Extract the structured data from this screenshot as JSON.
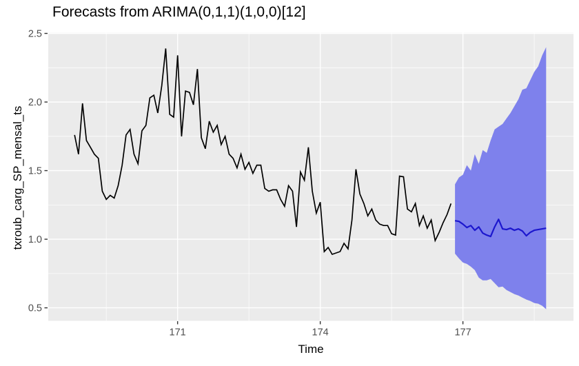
{
  "title": "Forecasts from ARIMA(0,1,1)(1,0,0)[12]",
  "x_axis": {
    "label": "Time",
    "tick_labels": [
      "171",
      "174",
      "177"
    ],
    "tick_values": [
      171,
      174,
      177
    ],
    "minor_tick_values": [
      169.5,
      172.5,
      175.5,
      178.5
    ],
    "range": [
      168.28,
      179.325
    ]
  },
  "y_axis": {
    "label": "txroub_carg_SP_mensal_ts",
    "tick_labels": [
      "0.5",
      "1.0",
      "1.5",
      "2.0",
      "2.5"
    ],
    "tick_values": [
      0.5,
      1.0,
      1.5,
      2.0,
      2.5
    ],
    "minor_tick_values": [
      0.75,
      1.25,
      1.75,
      2.25
    ],
    "range": [
      0.405,
      2.505
    ]
  },
  "colors": {
    "background": "#FFFFFF",
    "panel": "#EBEBEB",
    "grid": "#FFFFFF",
    "observed_line": "#000000",
    "forecast_line": "#1C17CE",
    "interval_fill": "#7E81EC",
    "tick_text": "#4D4D4D",
    "axis_text": "#000000",
    "tick_mark": "#333333"
  },
  "chart_data": {
    "type": "line",
    "title": "Forecasts from ARIMA(0,1,1)(1,0,0)[12]",
    "xlabel": "Time",
    "ylabel": "txroub_carg_SP_mensal_ts",
    "xlim": [
      168.28,
      179.325
    ],
    "ylim": [
      0.405,
      2.505
    ],
    "grid": "white major+minor gridlines on gray panel",
    "legend_position": "none",
    "frequency": 12,
    "series": [
      {
        "name": "observed",
        "type": "line",
        "color": "#000000",
        "x_start": 168.8333,
        "x_step": 0.083333,
        "values": [
          1.76,
          1.62,
          1.99,
          1.72,
          1.67,
          1.62,
          1.59,
          1.35,
          1.29,
          1.32,
          1.3,
          1.39,
          1.54,
          1.76,
          1.8,
          1.62,
          1.55,
          1.79,
          1.83,
          2.03,
          2.05,
          1.92,
          2.12,
          2.39,
          1.91,
          1.89,
          2.34,
          1.75,
          2.08,
          2.07,
          1.98,
          2.24,
          1.74,
          1.66,
          1.86,
          1.78,
          1.83,
          1.69,
          1.75,
          1.62,
          1.59,
          1.52,
          1.62,
          1.51,
          1.56,
          1.48,
          1.54,
          1.54,
          1.37,
          1.35,
          1.36,
          1.36,
          1.29,
          1.24,
          1.39,
          1.35,
          1.09,
          1.49,
          1.43,
          1.67,
          1.35,
          1.19,
          1.27,
          0.91,
          0.94,
          0.89,
          0.9,
          0.91,
          0.97,
          0.93,
          1.14,
          1.51,
          1.33,
          1.26,
          1.17,
          1.22,
          1.14,
          1.11,
          1.1,
          1.1,
          1.04,
          1.03,
          1.46,
          1.455,
          1.22,
          1.2,
          1.26,
          1.1,
          1.17,
          1.08,
          1.14,
          0.99,
          1.05,
          1.12,
          1.18,
          1.26
        ]
      },
      {
        "name": "forecast_mean",
        "type": "line",
        "color": "#1C17CE",
        "x_start": 176.8333,
        "x_step": 0.083333,
        "values": [
          1.135,
          1.13,
          1.11,
          1.085,
          1.1,
          1.065,
          1.09,
          1.045,
          1.03,
          1.02,
          1.09,
          1.145,
          1.075,
          1.07,
          1.08,
          1.065,
          1.075,
          1.06,
          1.025,
          1.05,
          1.065,
          1.07,
          1.075,
          1.08
        ]
      },
      {
        "name": "forecast_interval",
        "type": "area_band",
        "color": "#7E81EC",
        "x_start": 176.8333,
        "x_step": 0.083333,
        "upper": [
          1.4,
          1.45,
          1.47,
          1.54,
          1.5,
          1.62,
          1.55,
          1.65,
          1.63,
          1.72,
          1.8,
          1.82,
          1.84,
          1.88,
          1.92,
          1.97,
          2.02,
          2.09,
          2.1,
          2.16,
          2.22,
          2.26,
          2.34,
          2.4
        ],
        "lower": [
          0.895,
          0.86,
          0.83,
          0.82,
          0.8,
          0.775,
          0.72,
          0.7,
          0.7,
          0.71,
          0.68,
          0.65,
          0.655,
          0.63,
          0.615,
          0.6,
          0.59,
          0.575,
          0.56,
          0.55,
          0.535,
          0.53,
          0.515,
          0.49
        ]
      }
    ]
  }
}
